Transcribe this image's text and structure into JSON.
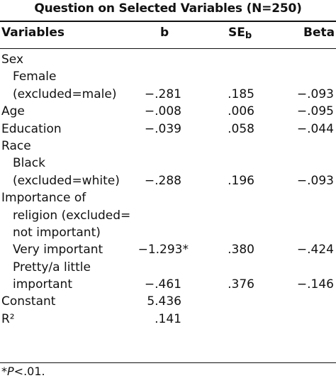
{
  "table": {
    "title": "Question on Selected Variables (N=250)",
    "headers": {
      "variables": "Variables",
      "b": "b",
      "se": "SE",
      "se_sub": "b",
      "beta": "Beta"
    },
    "rows": [
      {
        "label": "Sex",
        "indent": 0,
        "b": "",
        "se": "",
        "beta": ""
      },
      {
        "label": "Female",
        "indent": 1,
        "b": "",
        "se": "",
        "beta": ""
      },
      {
        "label": "(excluded=male)",
        "indent": 1,
        "b": "−.281",
        "se": ".185",
        "beta": "−.093"
      },
      {
        "label": "Age",
        "indent": 0,
        "b": "−.008",
        "se": ".006",
        "beta": "−.095"
      },
      {
        "label": "Education",
        "indent": 0,
        "b": "−.039",
        "se": ".058",
        "beta": "−.044"
      },
      {
        "label": "Race",
        "indent": 0,
        "b": "",
        "se": "",
        "beta": ""
      },
      {
        "label": "Black",
        "indent": 1,
        "b": "",
        "se": "",
        "beta": ""
      },
      {
        "label": "(excluded=white)",
        "indent": 1,
        "b": "−.288",
        "se": ".196",
        "beta": "−.093"
      },
      {
        "label": "Importance of",
        "indent": 0,
        "b": "",
        "se": "",
        "beta": ""
      },
      {
        "label": "religion (excluded=",
        "indent": 1,
        "b": "",
        "se": "",
        "beta": ""
      },
      {
        "label": "not important)",
        "indent": 1,
        "b": "",
        "se": "",
        "beta": ""
      },
      {
        "label": "Very important",
        "indent": 1,
        "b": "−1.293*",
        "se": ".380",
        "beta": "−.424"
      },
      {
        "label": "Pretty/a little",
        "indent": 1,
        "b": "",
        "se": "",
        "beta": ""
      },
      {
        "label": "important",
        "indent": 2,
        "b": "−.461",
        "se": ".376",
        "beta": "−.146"
      },
      {
        "label": "Constant",
        "indent": 0,
        "b": "5.436",
        "se": "",
        "beta": ""
      },
      {
        "label": "R²",
        "indent": 0,
        "b": ".141",
        "se": "",
        "beta": ""
      }
    ],
    "footnote": {
      "symbol": "*",
      "p": "P",
      "text": "<.01."
    }
  }
}
